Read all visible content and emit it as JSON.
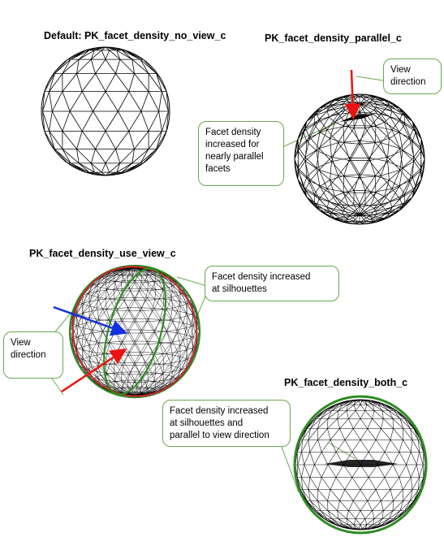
{
  "panels": {
    "no_view": {
      "title": "Default: PK_facet_density_no_view_c"
    },
    "parallel": {
      "title": "PK_facet_density_parallel_c",
      "callout_view": "View\ndirection",
      "callout_density": "Facet density\nincreased for\nnearly parallel\nfacets"
    },
    "use_view": {
      "title": "PK_facet_density_use_view_c",
      "callout_density": "Facet density increased\nat silhouettes",
      "callout_view": "View\ndirection"
    },
    "both": {
      "title": "PK_facet_density_both_c",
      "callout_density": "Facet density increased\nat silhouettes and\nparallel to view direction"
    }
  },
  "colors": {
    "mesh": "#000000",
    "callout_border": "#6aa84f",
    "silhouette_red": "#c0282b",
    "silhouette_green": "#2e8b22",
    "view_arrow_red": "#ee1111",
    "view_arrow_blue": "#1530e0"
  }
}
